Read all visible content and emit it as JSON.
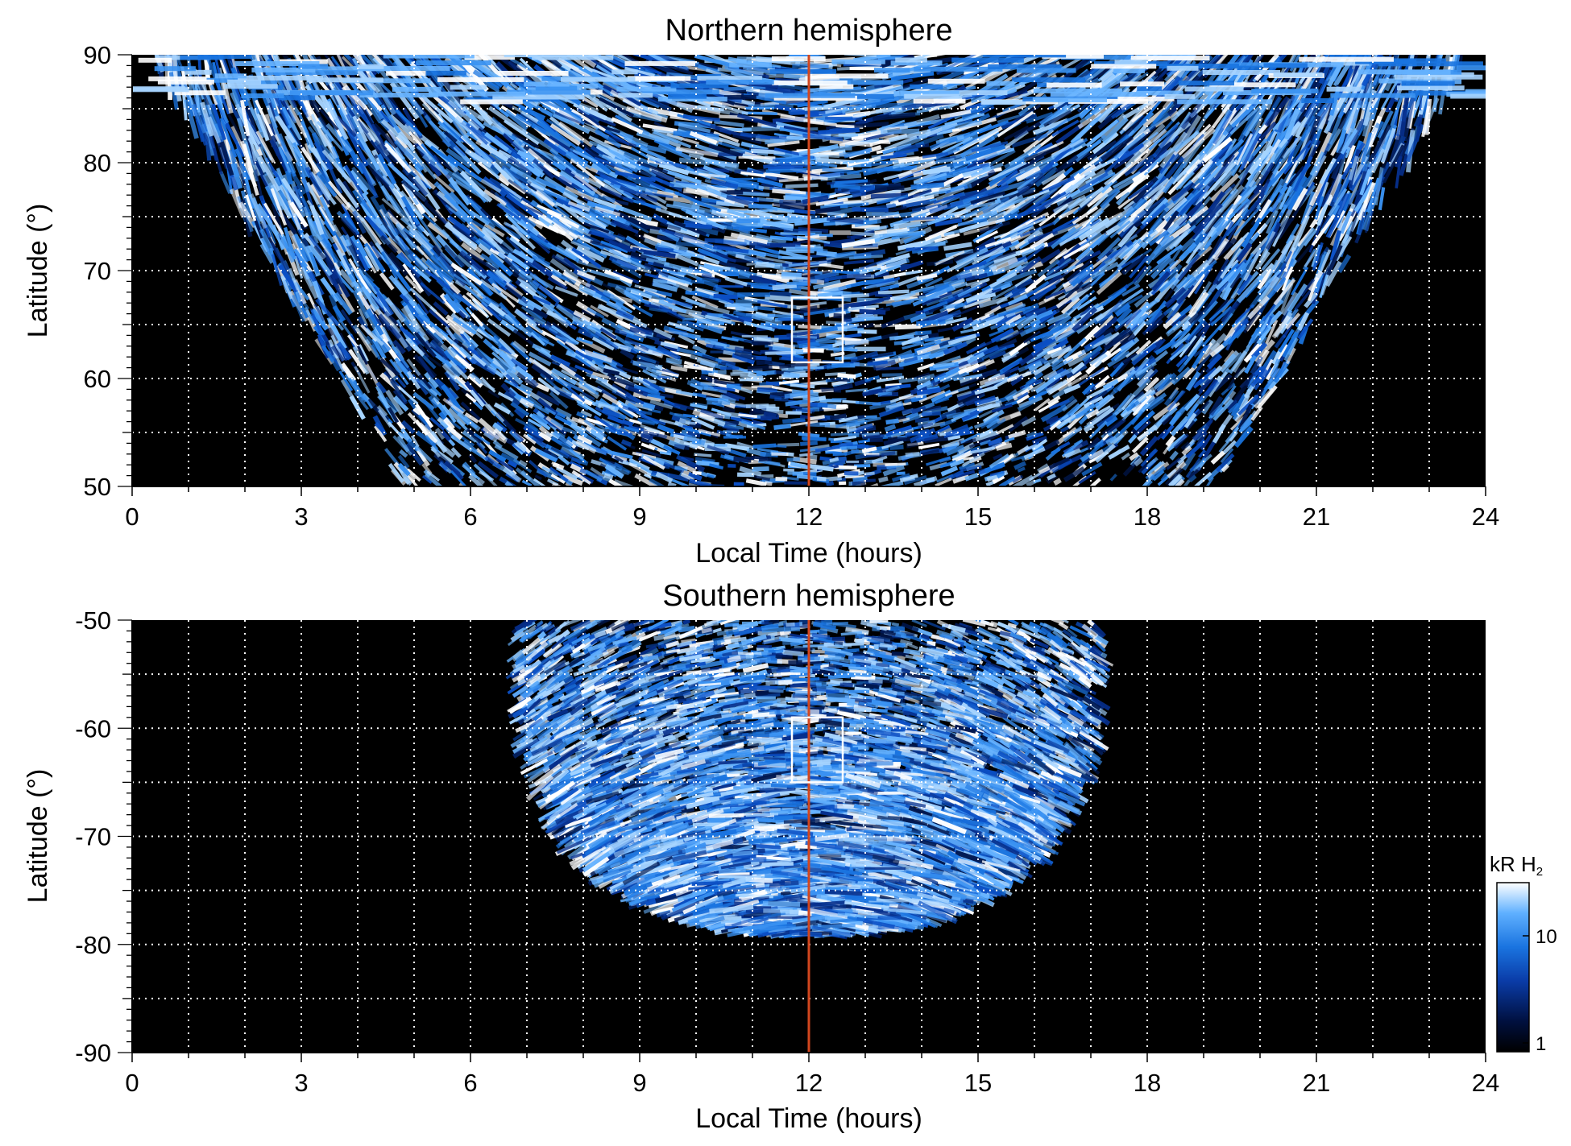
{
  "figure": {
    "colorbar": {
      "title_main": "kR H",
      "title_sub": "2",
      "tick_labels": [
        "10",
        "1"
      ],
      "scale": "log",
      "range": [
        1,
        25
      ],
      "colors": [
        "#000000",
        "#00103f",
        "#0a3ca8",
        "#1a74e0",
        "#5fb0ff",
        "#ffffff"
      ]
    },
    "accent_colors": {
      "marker_line": "#d2461e",
      "box": "#ffffff",
      "grid": "#ffffff",
      "background": "#000000"
    }
  },
  "chart_data": [
    {
      "type": "heatmap",
      "title": "Northern hemisphere",
      "xlabel": "Local Time (hours)",
      "ylabel": "Latitude (°)",
      "xlim": [
        0,
        24
      ],
      "ylim": [
        50,
        90
      ],
      "x_ticks": [
        "0",
        "3",
        "6",
        "9",
        "12",
        "15",
        "18",
        "21",
        "24"
      ],
      "y_ticks": [
        "50",
        "60",
        "70",
        "80",
        "90"
      ],
      "grid": true,
      "vertical_marker_lt": 12,
      "highlight_box": {
        "lt": [
          11.7,
          12.6
        ],
        "lat": [
          61.5,
          67.5
        ]
      }
    },
    {
      "type": "heatmap",
      "title": "Southern hemisphere",
      "xlabel": "Local Time (hours)",
      "ylabel": "Latitude (°)",
      "xlim": [
        0,
        24
      ],
      "ylim": [
        -90,
        -50
      ],
      "x_ticks": [
        "0",
        "3",
        "6",
        "9",
        "12",
        "15",
        "18",
        "21",
        "24"
      ],
      "y_ticks": [
        "-50",
        "-60",
        "-70",
        "-80",
        "-90"
      ],
      "grid": true,
      "vertical_marker_lt": 12,
      "highlight_box": {
        "lt": [
          11.7,
          12.6
        ],
        "lat": [
          -65,
          -59
        ]
      }
    }
  ]
}
